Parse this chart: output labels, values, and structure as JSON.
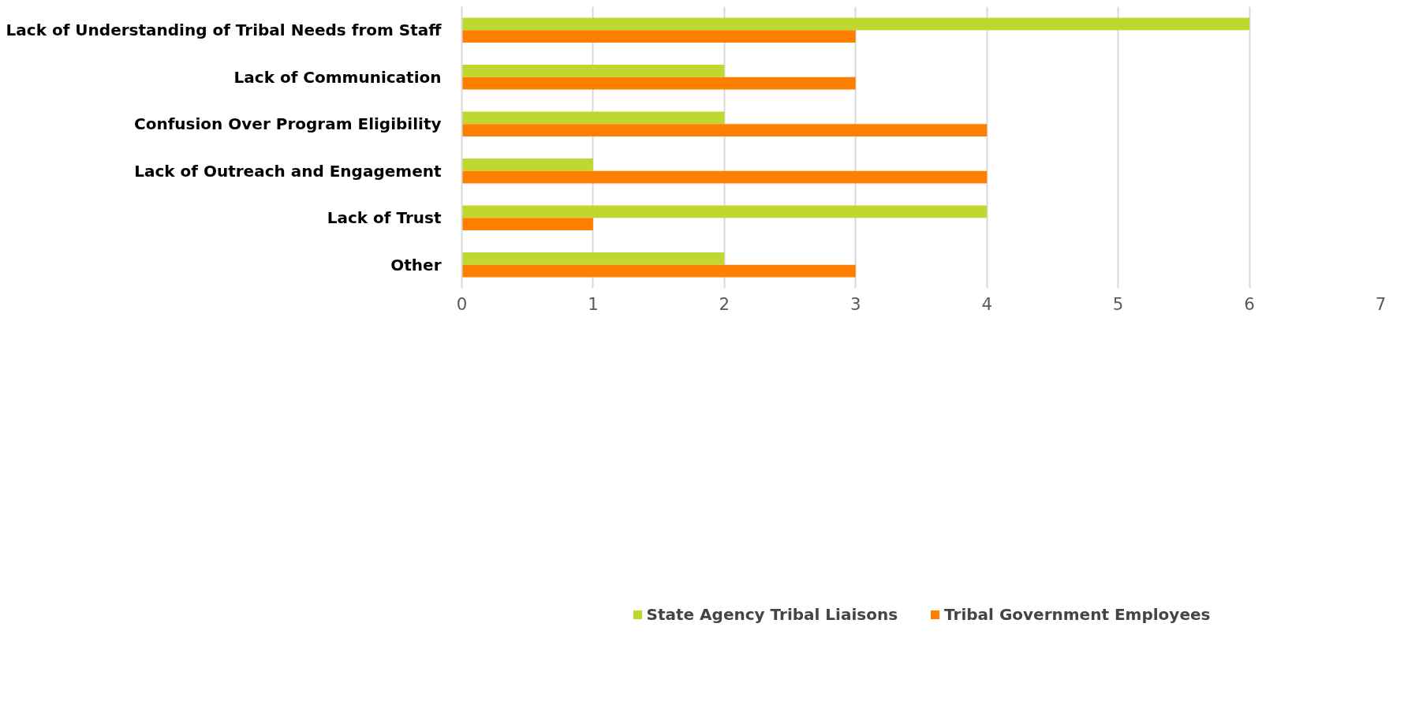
{
  "chart_data": {
    "type": "bar",
    "orientation": "horizontal",
    "categories": [
      "Lack of Understanding of Tribal Needs from Staff",
      "Lack of Communication",
      "Confusion Over Program Eligibility",
      "Lack of Outreach and Engagement",
      "Lack of Trust",
      "Other"
    ],
    "series": [
      {
        "name": "State Agency Tribal Liaisons",
        "color": "#c0d72f",
        "values": [
          6,
          2,
          2,
          1,
          4,
          2
        ]
      },
      {
        "name": "Tribal Government Employees",
        "color": "#ff8000",
        "values": [
          3,
          3,
          4,
          4,
          1,
          3
        ]
      }
    ],
    "xlim": [
      0,
      7
    ],
    "xticks": [
      0,
      1,
      2,
      3,
      4,
      5,
      6,
      7
    ],
    "grid": "x",
    "legend": "bottom"
  }
}
